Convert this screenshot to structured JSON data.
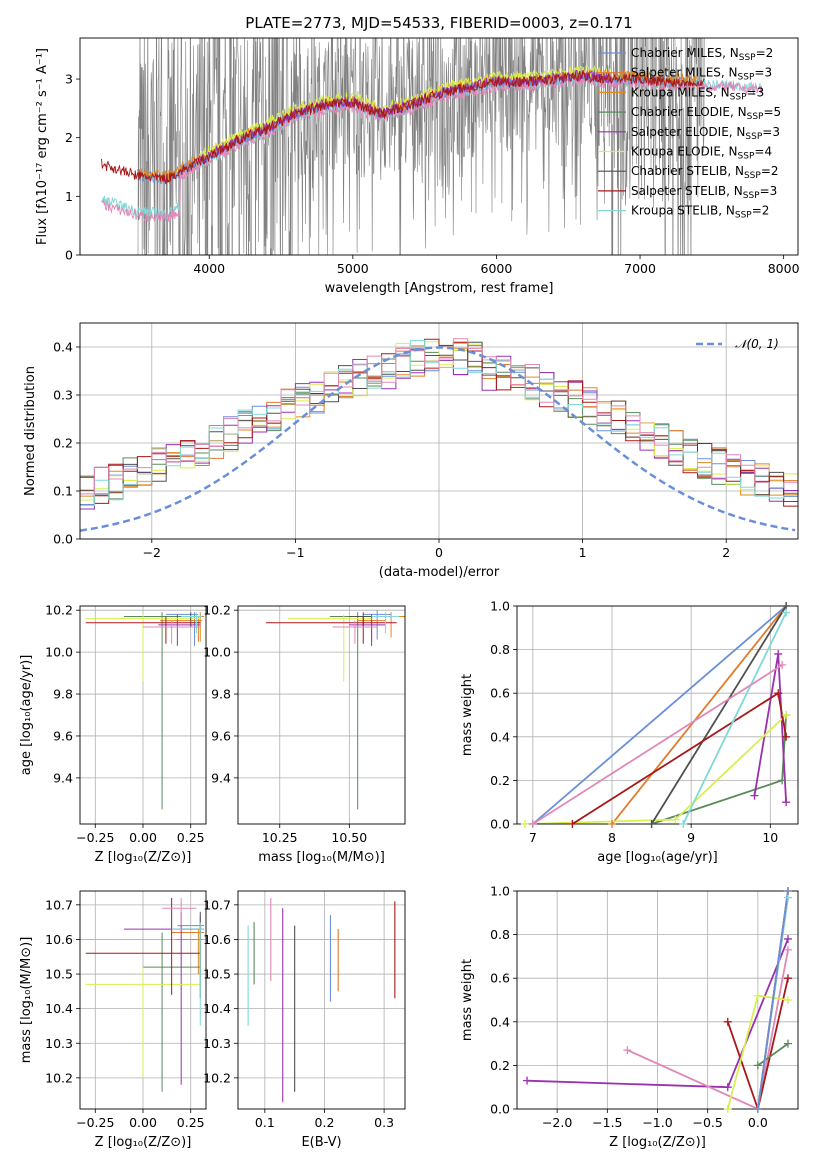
{
  "figure_title": "PLATE=2773, MJD=54533, FIBERID=0003, z=0.171",
  "colors": {
    "c_miles": "#6a8fd8",
    "s_miles": "#e07b2b",
    "k_miles": "#e08a20",
    "c_elodie": "#5a8a5a",
    "s_elodie": "#9a30b0",
    "k_elodie": "#d8ef50",
    "c_stelib": "#505050",
    "s_stelib": "#a81818",
    "k_stelib": "#80d8d8",
    "data": "#808080",
    "pink": "#e088b8"
  },
  "chart_data": [
    {
      "id": "spectrum",
      "type": "line",
      "xlabel": "wavelength [Angstrom, rest frame]",
      "ylabel": "Flux [fλ10⁻¹⁷ erg cm⁻² s⁻¹ A⁻¹]",
      "xlim": [
        3100,
        8100
      ],
      "ylim": [
        0,
        3.7
      ],
      "xticks": [
        "4000",
        "5000",
        "6000",
        "7000",
        "8000"
      ],
      "yticks": [
        "0",
        "1",
        "2",
        "3"
      ],
      "legend": [
        "Chabrier MILES, N_SSP=2",
        "Salpeter MILES, N_SSP=3",
        "Kroupa MILES, N_SSP=3",
        "Chabrier ELODIE, N_SSP=5",
        "Salpeter ELODIE, N_SSP=3",
        "Kroupa ELODIE, N_SSP=4",
        "Chabrier STELIB, N_SSP=2",
        "Salpeter STELIB, N_SSP=3",
        "Kroupa STELIB, N_SSP=2"
      ],
      "legend_colors": [
        "c_miles",
        "s_miles",
        "k_miles",
        "c_elodie",
        "s_elodie",
        "k_elodie",
        "c_stelib",
        "s_stelib",
        "k_stelib"
      ],
      "continuum": {
        "x": [
          3250,
          3500,
          3700,
          3900,
          4050,
          4200,
          4400,
          4600,
          4800,
          5000,
          5200,
          5400,
          5600,
          5800,
          6000,
          6200,
          6400,
          6600,
          6800,
          7000,
          7200,
          7400,
          7600,
          7800
        ],
        "y": [
          1.55,
          1.35,
          1.3,
          1.55,
          1.75,
          1.95,
          2.15,
          2.4,
          2.55,
          2.6,
          2.4,
          2.55,
          2.75,
          2.85,
          2.95,
          2.95,
          3.0,
          3.05,
          3.0,
          3.0,
          2.95,
          2.95,
          2.95,
          2.9
        ]
      }
    },
    {
      "id": "residuals",
      "type": "bar",
      "xlabel": "(data-model)/error",
      "ylabel": "Normed distribution",
      "xlim": [
        -2.5,
        2.5
      ],
      "ylim": [
        0,
        0.45
      ],
      "xticks": [
        "−2",
        "−1",
        "0",
        "1",
        "2"
      ],
      "yticks": [
        "0.0",
        "0.1",
        "0.2",
        "0.3",
        "0.4"
      ],
      "legend": [
        "𝒩(0, 1)"
      ],
      "bin_width": 0.1
    },
    {
      "id": "age_vs_Z",
      "type": "scatter",
      "xlabel": "Z [log₁₀(Z/Z⊙)]",
      "ylabel": "age  [log₁₀(age/yr)]",
      "xlim": [
        -0.33,
        0.33
      ],
      "ylim": [
        9.18,
        10.22
      ],
      "xticks": [
        "−0.25",
        "0.00",
        "0.25"
      ],
      "yticks": [
        "9.4",
        "9.6",
        "9.8",
        "10.0",
        "10.2"
      ],
      "points": [
        {
          "c": "c_miles",
          "x": 0.27,
          "y": 10.18,
          "xerr": [
            0.15,
            0.02
          ],
          "yerr": [
            0.15,
            0.01
          ]
        },
        {
          "c": "s_miles",
          "x": 0.29,
          "y": 10.15,
          "xerr": [
            0.2,
            0.02
          ],
          "yerr": [
            0.1,
            0.02
          ]
        },
        {
          "c": "k_miles",
          "x": 0.3,
          "y": 10.17,
          "xerr": [
            0.1,
            0.02
          ],
          "yerr": [
            0.12,
            0.02
          ]
        },
        {
          "c": "c_elodie",
          "x": 0.1,
          "y": 10.17,
          "xerr": [
            0.2,
            0.2
          ],
          "yerr": [
            0.92,
            0.02
          ]
        },
        {
          "c": "s_elodie",
          "x": 0.18,
          "y": 10.13,
          "xerr": [
            0.1,
            0.12
          ],
          "yerr": [
            0.1,
            0.05
          ]
        },
        {
          "c": "k_elodie",
          "x": 0.0,
          "y": 10.16,
          "xerr": [
            0.3,
            0.3
          ],
          "yerr": [
            0.3,
            0.02
          ]
        },
        {
          "c": "c_stelib",
          "x": 0.25,
          "y": 10.17,
          "xerr": [
            0.05,
            0.05
          ],
          "yerr": [
            0.05,
            0.02
          ]
        },
        {
          "c": "s_stelib",
          "x": 0.12,
          "y": 10.14,
          "xerr": [
            0.42,
            0.18
          ],
          "yerr": [
            0.1,
            0.03
          ]
        },
        {
          "c": "k_stelib",
          "x": 0.28,
          "y": 10.17,
          "xerr": [
            0.08,
            0.03
          ],
          "yerr": [
            0.08,
            0.02
          ]
        },
        {
          "c": "pink",
          "x": 0.15,
          "y": 10.12,
          "xerr": [
            0.15,
            0.15
          ],
          "yerr": [
            0.08,
            0.03
          ]
        }
      ]
    },
    {
      "id": "age_vs_mass",
      "type": "scatter",
      "xlabel": "mass [log₁₀(M/M⊙)]",
      "ylabel": "",
      "xlim": [
        10.1,
        10.7
      ],
      "ylim": [
        9.18,
        10.22
      ],
      "xticks": [
        "10.25",
        "10.50"
      ],
      "yticks": [
        "9.4",
        "9.6",
        "9.8",
        "10.0",
        "10.2"
      ],
      "points": [
        {
          "c": "c_miles",
          "x": 10.6,
          "y": 10.18,
          "xerr": [
            0.05,
            0.05
          ],
          "yerr": [
            0.12,
            0.02
          ]
        },
        {
          "c": "s_miles",
          "x": 10.58,
          "y": 10.15,
          "xerr": [
            0.05,
            0.05
          ],
          "yerr": [
            0.1,
            0.02
          ]
        },
        {
          "c": "k_miles",
          "x": 10.65,
          "y": 10.17,
          "xerr": [
            0.05,
            0.05
          ],
          "yerr": [
            0.1,
            0.02
          ]
        },
        {
          "c": "c_elodie",
          "x": 10.53,
          "y": 10.17,
          "xerr": [
            0.1,
            0.1
          ],
          "yerr": [
            0.92,
            0.02
          ]
        },
        {
          "c": "s_elodie",
          "x": 10.58,
          "y": 10.13,
          "xerr": [
            0.08,
            0.05
          ],
          "yerr": [
            0.1,
            0.05
          ]
        },
        {
          "c": "k_elodie",
          "x": 10.48,
          "y": 10.16,
          "xerr": [
            0.2,
            0.1
          ],
          "yerr": [
            0.3,
            0.02
          ]
        },
        {
          "c": "c_stelib",
          "x": 10.55,
          "y": 10.17,
          "xerr": [
            0.05,
            0.05
          ],
          "yerr": [
            0.05,
            0.02
          ]
        },
        {
          "c": "s_stelib",
          "x": 10.55,
          "y": 10.14,
          "xerr": [
            0.35,
            0.12
          ],
          "yerr": [
            0.1,
            0.03
          ]
        },
        {
          "c": "k_stelib",
          "x": 10.63,
          "y": 10.17,
          "xerr": [
            0.05,
            0.05
          ],
          "yerr": [
            0.08,
            0.02
          ]
        },
        {
          "c": "pink",
          "x": 10.52,
          "y": 10.12,
          "xerr": [
            0.08,
            0.08
          ],
          "yerr": [
            0.08,
            0.03
          ]
        }
      ]
    },
    {
      "id": "weight_vs_age",
      "type": "line",
      "xlabel": "age  [log₁₀(age/yr)]",
      "ylabel": "mass weight",
      "xlim": [
        6.8,
        10.35
      ],
      "ylim": [
        0,
        1
      ],
      "xticks": [
        "7",
        "8",
        "9",
        "10"
      ],
      "yticks": [
        "0.0",
        "0.2",
        "0.4",
        "0.6",
        "0.8",
        "1.0"
      ],
      "series": [
        {
          "c": "c_miles",
          "x": [
            7.0,
            10.2
          ],
          "y": [
            0.0,
            1.0
          ]
        },
        {
          "c": "s_miles",
          "x": [
            8.0,
            10.2
          ],
          "y": [
            0.0,
            1.0
          ]
        },
        {
          "c": "c_elodie",
          "x": [
            8.5,
            10.15,
            10.2
          ],
          "y": [
            0.0,
            0.2,
            0.5
          ]
        },
        {
          "c": "s_elodie",
          "x": [
            9.8,
            10.1,
            10.2
          ],
          "y": [
            0.13,
            0.78,
            0.1
          ]
        },
        {
          "c": "k_elodie",
          "x": [
            6.9,
            8.8,
            10.2
          ],
          "y": [
            0.0,
            0.02,
            0.5
          ]
        },
        {
          "c": "c_stelib",
          "x": [
            8.5,
            10.2
          ],
          "y": [
            0.0,
            1.0
          ]
        },
        {
          "c": "s_stelib",
          "x": [
            7.5,
            10.1,
            10.2
          ],
          "y": [
            0.0,
            0.6,
            0.4
          ]
        },
        {
          "c": "k_stelib",
          "x": [
            8.9,
            10.2
          ],
          "y": [
            0.0,
            0.97
          ]
        },
        {
          "c": "pink",
          "x": [
            7.0,
            10.15
          ],
          "y": [
            0.0,
            0.73
          ]
        }
      ]
    },
    {
      "id": "mass_vs_Z",
      "type": "scatter",
      "xlabel": "Z [log₁₀(Z/Z⊙)]",
      "ylabel": "mass [log₁₀(M/M⊙)]",
      "xlim": [
        -0.33,
        0.33
      ],
      "ylim": [
        10.11,
        10.74
      ],
      "xticks": [
        "−0.25",
        "0.00",
        "0.25"
      ],
      "yticks": [
        "10.2",
        "10.3",
        "10.4",
        "10.5",
        "10.6",
        "10.7"
      ],
      "points": [
        {
          "c": "c_miles",
          "x": 0.3,
          "y": 10.64,
          "xerr": [
            0.12,
            0.02
          ],
          "yerr": [
            0.14,
            0.03
          ]
        },
        {
          "c": "s_miles",
          "x": 0.3,
          "y": 10.62,
          "xerr": [
            0.15,
            0.02
          ],
          "yerr": [
            0.1,
            0.03
          ]
        },
        {
          "c": "k_miles",
          "x": 0.29,
          "y": 10.6,
          "xerr": [
            0.12,
            0.02
          ],
          "yerr": [
            0.1,
            0.03
          ]
        },
        {
          "c": "c_elodie",
          "x": 0.1,
          "y": 10.52,
          "xerr": [
            0.1,
            0.2
          ],
          "yerr": [
            0.36,
            0.1
          ]
        },
        {
          "c": "s_elodie",
          "x": 0.2,
          "y": 10.63,
          "xerr": [
            0.3,
            0.1
          ],
          "yerr": [
            0.45,
            0.05
          ]
        },
        {
          "c": "k_elodie",
          "x": 0.0,
          "y": 10.47,
          "xerr": [
            0.3,
            0.3
          ],
          "yerr": [
            0.27,
            0.05
          ]
        },
        {
          "c": "c_stelib",
          "x": 0.3,
          "y": 10.63,
          "xerr": [
            0.1,
            0.02
          ],
          "yerr": [
            0.2,
            0.05
          ]
        },
        {
          "c": "s_stelib",
          "x": 0.15,
          "y": 10.56,
          "xerr": [
            0.45,
            0.15
          ],
          "yerr": [
            0.12,
            0.16
          ]
        },
        {
          "c": "k_stelib",
          "x": 0.3,
          "y": 10.63,
          "xerr": [
            0.15,
            0.02
          ],
          "yerr": [
            0.28,
            0.02
          ]
        },
        {
          "c": "pink",
          "x": 0.2,
          "y": 10.69,
          "xerr": [
            0.1,
            0.08
          ],
          "yerr": [
            0.05,
            0.03
          ]
        }
      ]
    },
    {
      "id": "mass_vs_ebv",
      "type": "scatter",
      "xlabel": "E(B-V)",
      "ylabel": "",
      "xlim": [
        0.055,
        0.335
      ],
      "ylim": [
        10.11,
        10.74
      ],
      "xticks": [
        "0.1",
        "0.2",
        "0.3"
      ],
      "yticks": [
        "10.2",
        "10.3",
        "10.4",
        "10.5",
        "10.6",
        "10.7"
      ],
      "segments": [
        {
          "c": "k_stelib",
          "x": 0.072,
          "y0": 10.35,
          "y1": 10.64
        },
        {
          "c": "c_elodie",
          "x": 0.082,
          "y0": 10.47,
          "y1": 10.65
        },
        {
          "c": "pink",
          "x": 0.11,
          "y0": 10.48,
          "y1": 10.72
        },
        {
          "c": "s_elodie",
          "x": 0.13,
          "y0": 10.13,
          "y1": 10.69
        },
        {
          "c": "c_stelib",
          "x": 0.15,
          "y0": 10.16,
          "y1": 10.64
        },
        {
          "c": "c_miles",
          "x": 0.21,
          "y0": 10.42,
          "y1": 10.67
        },
        {
          "c": "s_miles",
          "x": 0.223,
          "y0": 10.45,
          "y1": 10.63
        },
        {
          "c": "s_stelib",
          "x": 0.318,
          "y0": 10.43,
          "y1": 10.71
        }
      ]
    },
    {
      "id": "weight_vs_Z",
      "type": "line",
      "xlabel": "Z [log₁₀(Z/Z⊙)]",
      "ylabel": "mass weight",
      "xlim": [
        -2.4,
        0.4
      ],
      "ylim": [
        0,
        1
      ],
      "xticks": [
        "−2.0",
        "−1.5",
        "−1.0",
        "−0.5",
        "0.0"
      ],
      "yticks": [
        "0.0",
        "0.2",
        "0.4",
        "0.6",
        "0.8",
        "1.0"
      ],
      "series": [
        {
          "c": "s_elodie",
          "x": [
            -2.3,
            -0.3,
            0.3
          ],
          "y": [
            0.13,
            0.1,
            0.78
          ]
        },
        {
          "c": "pink",
          "x": [
            -1.3,
            0.0,
            0.3
          ],
          "y": [
            0.27,
            0.0,
            0.73
          ]
        },
        {
          "c": "s_stelib",
          "x": [
            -0.3,
            0.0,
            0.3
          ],
          "y": [
            0.4,
            0.0,
            0.6
          ]
        },
        {
          "c": "k_elodie",
          "x": [
            -0.3,
            0.0,
            0.3
          ],
          "y": [
            0.0,
            0.52,
            0.5
          ]
        },
        {
          "c": "c_elodie",
          "x": [
            0.0,
            0.3
          ],
          "y": [
            0.2,
            0.3
          ]
        },
        {
          "c": "c_stelib",
          "x": [
            0.0,
            0.3
          ],
          "y": [
            0.0,
            1.0
          ]
        },
        {
          "c": "k_stelib",
          "x": [
            0.0,
            0.3
          ],
          "y": [
            0.0,
            0.97
          ]
        },
        {
          "c": "s_miles",
          "x": [
            0.0,
            0.3
          ],
          "y": [
            0.0,
            1.0
          ]
        },
        {
          "c": "c_miles",
          "x": [
            0.0,
            0.3
          ],
          "y": [
            0.0,
            1.0
          ]
        }
      ]
    }
  ]
}
